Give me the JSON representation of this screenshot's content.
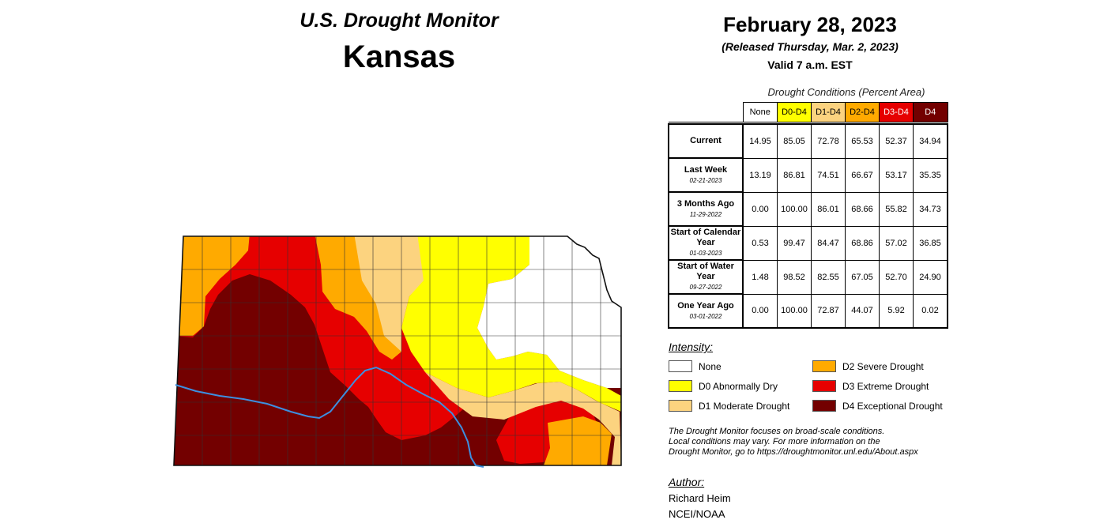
{
  "header": {
    "title": "U.S. Drought Monitor",
    "state": "Kansas",
    "date": "February 28, 2023",
    "released": "(Released Thursday, Mar. 2, 2023)",
    "valid": "Valid 7 a.m. EST"
  },
  "table": {
    "title": "Drought Conditions (Percent Area)",
    "columns": [
      {
        "label": "None",
        "color": "#ffffff"
      },
      {
        "label": "D0-D4",
        "color": "#ffff00"
      },
      {
        "label": "D1-D4",
        "color": "#fcd37f"
      },
      {
        "label": "D2-D4",
        "color": "#ffaa00"
      },
      {
        "label": "D3-D4",
        "color": "#e60000",
        "text_color": "#ffffff"
      },
      {
        "label": "D4",
        "color": "#730000",
        "text_color": "#ffffff"
      }
    ],
    "rows": [
      {
        "label": "Current",
        "sub": "",
        "values": [
          "14.95",
          "85.05",
          "72.78",
          "65.53",
          "52.37",
          "34.94"
        ]
      },
      {
        "label": "Last Week",
        "sub": "02-21-2023",
        "values": [
          "13.19",
          "86.81",
          "74.51",
          "66.67",
          "53.17",
          "35.35"
        ]
      },
      {
        "label": "3 Months Ago",
        "sub": "11-29-2022",
        "values": [
          "0.00",
          "100.00",
          "86.01",
          "68.66",
          "55.82",
          "34.73"
        ]
      },
      {
        "label": "Start of Calendar Year",
        "sub": "01-03-2023",
        "values": [
          "0.53",
          "99.47",
          "84.47",
          "68.86",
          "57.02",
          "36.85"
        ]
      },
      {
        "label": "Start of Water Year",
        "sub": "09-27-2022",
        "values": [
          "1.48",
          "98.52",
          "82.55",
          "67.05",
          "52.70",
          "24.90"
        ]
      },
      {
        "label": "One Year Ago",
        "sub": "03-01-2022",
        "values": [
          "0.00",
          "100.00",
          "72.87",
          "44.07",
          "5.92",
          "0.02"
        ]
      }
    ]
  },
  "legend": {
    "title": "Intensity:",
    "items": [
      {
        "label": "None",
        "color": "#ffffff"
      },
      {
        "label": "D0 Abnormally Dry",
        "color": "#ffff00"
      },
      {
        "label": "D1 Moderate Drought",
        "color": "#fcd37f"
      },
      {
        "label": "D2 Severe Drought",
        "color": "#ffaa00"
      },
      {
        "label": "D3 Extreme Drought",
        "color": "#e60000"
      },
      {
        "label": "D4 Exceptional Drought",
        "color": "#730000"
      }
    ]
  },
  "note": {
    "line1": "The Drought Monitor focuses on broad-scale conditions.",
    "line2": "Local conditions may vary. For more information on the",
    "line3": "Drought Monitor, go to https://droughtmonitor.unl.edu/About.aspx"
  },
  "author": {
    "title": "Author:",
    "name": "Richard Heim",
    "org": "NCEI/NOAA"
  },
  "map_colors": {
    "none": "#ffffff",
    "d0": "#ffff00",
    "d1": "#fcd37f",
    "d2": "#ffaa00",
    "d3": "#e60000",
    "d4": "#730000",
    "river": "#3d8fe0"
  }
}
